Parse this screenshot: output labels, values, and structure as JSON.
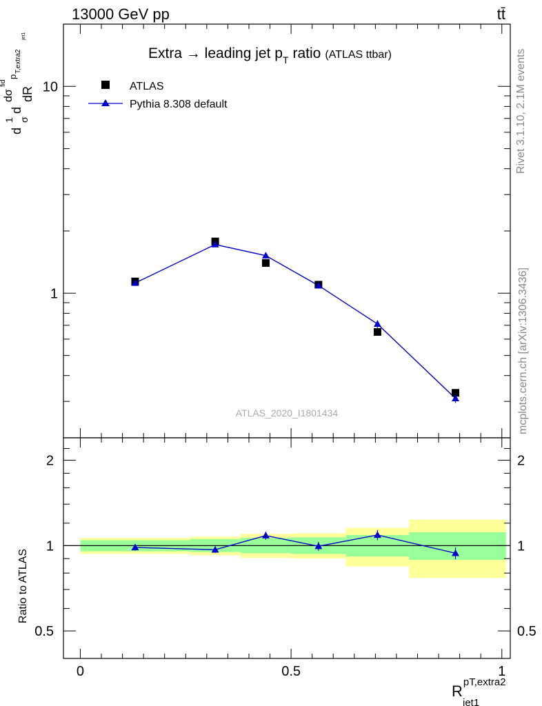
{
  "header": {
    "energy_label": "13000 GeV pp",
    "process_label": "tt̄"
  },
  "side_text": {
    "rivet_info": "Rivet 3.1.10,  2.1M events",
    "source_info": "mcplots.cern.ch [arXiv:1306.3436]"
  },
  "chart_data": [
    {
      "type": "scatter",
      "title_main": "Extra → leading jet p",
      "title_sub": "T",
      "title_tail": "ratio",
      "title_paren": "(ATLAS ttbar)",
      "watermark": "ATLAS_2020_I1801434",
      "ylabel_parts": [
        "d",
        "1",
        "σ",
        "d",
        "dσ",
        "fid",
        "p",
        "T,extra2",
        "jet1",
        "dR"
      ],
      "yscale": "log",
      "ylim": [
        0.2,
        20
      ],
      "xlim": [
        -0.04,
        1.02
      ],
      "ytick_labels": [
        {
          "value": 1,
          "label": "1"
        },
        {
          "value": 10,
          "label": "10"
        }
      ],
      "legend": {
        "position": "top-left",
        "entries": [
          "ATLAS",
          "Pythia 8.308 default"
        ]
      },
      "series": [
        {
          "name": "ATLAS",
          "marker": "square",
          "color": "#000000",
          "x": [
            0.13,
            0.32,
            0.44,
            0.565,
            0.705,
            0.89
          ],
          "y": [
            1.14,
            1.78,
            1.4,
            1.1,
            0.65,
            0.33
          ]
        },
        {
          "name": "Pythia 8.308 default",
          "marker": "triangle",
          "color": "#0000cc",
          "x": [
            0.13,
            0.32,
            0.44,
            0.565,
            0.705,
            0.89
          ],
          "y": [
            1.12,
            1.72,
            1.52,
            1.09,
            0.71,
            0.31
          ],
          "yerr": [
            0.03,
            0.04,
            0.05,
            0.03,
            0.03,
            0.015
          ]
        }
      ]
    },
    {
      "type": "scatter",
      "ylabel": "Ratio to ATLAS",
      "ylim": [
        0.4,
        2.4
      ],
      "yticks": [
        0.5,
        1,
        2
      ],
      "ytick_labels": [
        "0.5",
        "1",
        "2"
      ],
      "xticks": [
        0,
        0.5,
        1
      ],
      "xtick_labels": [
        "0",
        "0.5",
        "1"
      ],
      "xlabel_main": "R",
      "xlabel_sup": "pT,extra2",
      "xlabel_sub": "jet1",
      "bands": {
        "edges": [
          0.0,
          0.26,
          0.38,
          0.5,
          0.63,
          0.78,
          1.01
        ],
        "green_lo": [
          0.955,
          0.95,
          0.94,
          0.935,
          0.915,
          0.89
        ],
        "green_hi": [
          1.045,
          1.055,
          1.065,
          1.07,
          1.09,
          1.115
        ],
        "yellow_lo": [
          0.935,
          0.925,
          0.905,
          0.9,
          0.845,
          0.77
        ],
        "yellow_hi": [
          1.065,
          1.075,
          1.1,
          1.105,
          1.155,
          1.235
        ]
      },
      "series": [
        {
          "name": "Pythia 8.308 default",
          "marker": "triangle",
          "color": "#0000cc",
          "x": [
            0.13,
            0.32,
            0.44,
            0.565,
            0.705,
            0.89
          ],
          "y": [
            0.985,
            0.967,
            1.085,
            0.995,
            1.09,
            0.94
          ],
          "yerr": [
            0.025,
            0.025,
            0.035,
            0.035,
            0.045,
            0.045
          ]
        }
      ]
    }
  ]
}
